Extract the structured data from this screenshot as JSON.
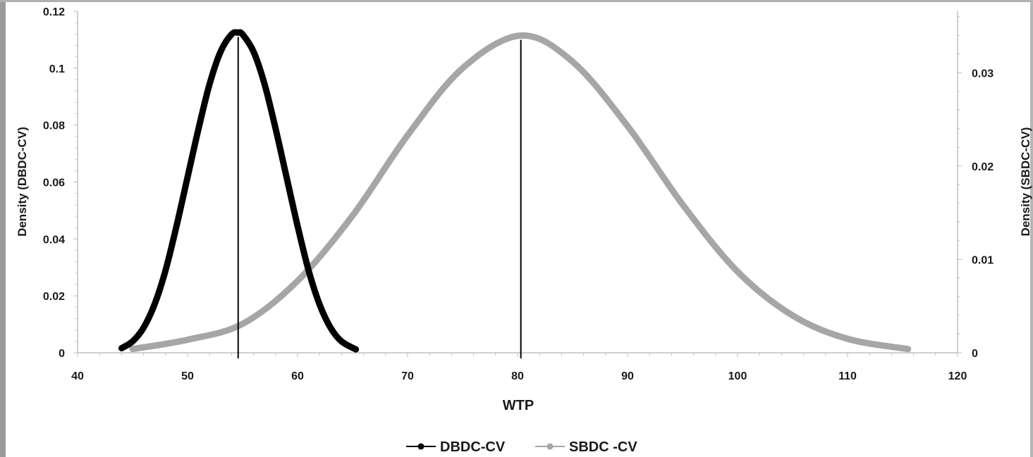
{
  "chart_data": {
    "type": "line",
    "title": "",
    "xlabel": "WTP",
    "ylabel_left": "Density (DBDC-CV)",
    "ylabel_right": "Density (SBDC-CV)",
    "xlim": [
      40,
      120
    ],
    "ylim_left": [
      0,
      0.12
    ],
    "ylim_right": [
      0,
      0.0366
    ],
    "x_ticks": [
      40,
      50,
      60,
      70,
      80,
      90,
      100,
      110,
      120
    ],
    "x_tick_labels": [
      "40",
      "50",
      "60",
      "70",
      "80",
      "90",
      "100",
      "110",
      "120"
    ],
    "y_left_ticks": [
      0,
      0.02,
      0.04,
      0.06,
      0.08,
      0.1,
      0.12
    ],
    "y_left_tick_labels": [
      "0",
      "0.02",
      "0.04",
      "0.06",
      "0.08",
      "0.1",
      "0.12"
    ],
    "y_right_ticks": [
      0,
      0.01,
      0.02,
      0.03
    ],
    "y_right_tick_labels": [
      "0",
      "0.01",
      "0.02",
      "0.03"
    ],
    "grid": false,
    "legend_position": "bottom",
    "series": [
      {
        "name": "DBDC-CV",
        "axis": "left",
        "color": "#000000",
        "mean": 54.6,
        "vertical_line_x": 54.6,
        "x": [
          44.0,
          45.0,
          46.0,
          47.0,
          48.0,
          49.0,
          50.0,
          51.0,
          52.0,
          53.0,
          54.0,
          54.6,
          55.0,
          56.0,
          57.0,
          58.0,
          59.0,
          60.0,
          61.0,
          62.0,
          63.0,
          64.0,
          65.3
        ],
        "y": [
          0.0016,
          0.004,
          0.0088,
          0.017,
          0.029,
          0.0446,
          0.0617,
          0.0788,
          0.0944,
          0.1058,
          0.1119,
          0.1125,
          0.1119,
          0.1058,
          0.0944,
          0.0788,
          0.0617,
          0.0446,
          0.029,
          0.017,
          0.0088,
          0.004,
          0.0012
        ]
      },
      {
        "name": "SBDC -CV",
        "axis": "right",
        "color": "#a6a6a6",
        "mean": 80.3,
        "vertical_line_x": 80.3,
        "x": [
          45.0,
          50.0,
          55.0,
          60.0,
          65.0,
          70.0,
          75.0,
          80.3,
          85.0,
          90.0,
          95.0,
          100.0,
          105.0,
          110.0,
          115.5
        ],
        "y": [
          0.0004,
          0.0014,
          0.0031,
          0.0077,
          0.0147,
          0.0233,
          0.0305,
          0.034,
          0.0312,
          0.0243,
          0.0159,
          0.0087,
          0.004,
          0.0015,
          0.0004
        ]
      }
    ]
  }
}
